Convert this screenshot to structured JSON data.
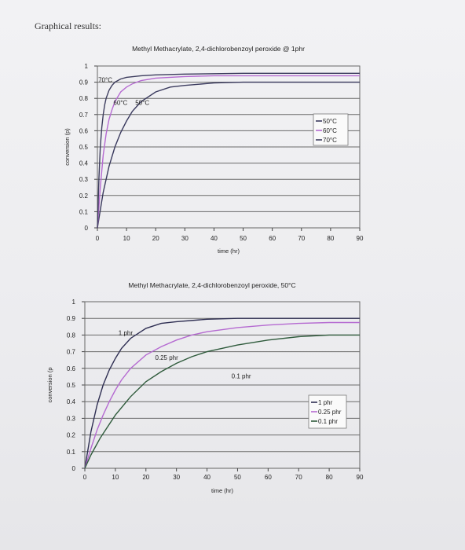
{
  "page": {
    "heading": "Graphical results:"
  },
  "chart_data": [
    {
      "type": "line",
      "title": "Methyl Methacrylate, 2,4-dichlorobenzoyl peroxide @ 1phr",
      "xlabel": "time (hr)",
      "ylabel": "conversion (p)",
      "xlim": [
        0,
        90
      ],
      "ylim": [
        0,
        1
      ],
      "xticks": [
        0,
        10,
        20,
        30,
        40,
        50,
        60,
        70,
        80,
        90
      ],
      "yticks": [
        0,
        0.1,
        0.2,
        0.3,
        0.4,
        0.5,
        0.6,
        0.7,
        0.8,
        0.9,
        1
      ],
      "grid": "horizontal",
      "legend": "right",
      "series": [
        {
          "name": "50°C",
          "color": "#3a3a5e",
          "x": [
            0,
            2,
            4,
            6,
            8,
            10,
            12,
            15,
            20,
            25,
            30,
            40,
            50,
            60,
            70,
            80,
            90
          ],
          "y": [
            0,
            0.22,
            0.38,
            0.5,
            0.59,
            0.66,
            0.72,
            0.78,
            0.84,
            0.87,
            0.88,
            0.895,
            0.9,
            0.9,
            0.9,
            0.9,
            0.9
          ]
        },
        {
          "name": "60°C",
          "color": "#b56ad1",
          "x": [
            0,
            1,
            2,
            3,
            4,
            5,
            6,
            8,
            10,
            12,
            15,
            20,
            25,
            30,
            40,
            50,
            60,
            70,
            80,
            90
          ],
          "y": [
            0,
            0.25,
            0.45,
            0.58,
            0.67,
            0.73,
            0.78,
            0.84,
            0.87,
            0.89,
            0.91,
            0.925,
            0.93,
            0.935,
            0.94,
            0.94,
            0.94,
            0.94,
            0.94,
            0.94
          ]
        },
        {
          "name": "70°C",
          "color": "#3d3d5e",
          "x": [
            0,
            0.5,
            1,
            1.5,
            2,
            2.5,
            3,
            4,
            5,
            6,
            8,
            10,
            15,
            20,
            30,
            50,
            70,
            90
          ],
          "y": [
            0,
            0.3,
            0.5,
            0.62,
            0.7,
            0.76,
            0.8,
            0.85,
            0.88,
            0.9,
            0.92,
            0.93,
            0.94,
            0.945,
            0.95,
            0.955,
            0.955,
            0.955
          ]
        }
      ],
      "annotations": [
        {
          "text": "70°C",
          "x": 0.3,
          "y": 0.9
        },
        {
          "text": "60°C",
          "x": 5.5,
          "y": 0.76
        },
        {
          "text": "50°C",
          "x": 13,
          "y": 0.76
        }
      ]
    },
    {
      "type": "line",
      "title": "Methyl Methacrylate, 2,4-dichlorobenzoyl peroxide, 50°C",
      "xlabel": "time (hr)",
      "ylabel": "conversion (p",
      "xlim": [
        0,
        90
      ],
      "ylim": [
        0,
        1
      ],
      "xticks": [
        0,
        10,
        20,
        30,
        40,
        50,
        60,
        70,
        80,
        90
      ],
      "yticks": [
        0,
        0.1,
        0.2,
        0.3,
        0.4,
        0.5,
        0.6,
        0.7,
        0.8,
        0.9,
        1
      ],
      "grid": "horizontal",
      "legend": "right",
      "series": [
        {
          "name": "1 phr",
          "color": "#2e2e52",
          "x": [
            0,
            2,
            4,
            6,
            8,
            10,
            12,
            15,
            20,
            25,
            30,
            40,
            50,
            60,
            70,
            80,
            90
          ],
          "y": [
            0,
            0.22,
            0.38,
            0.5,
            0.59,
            0.66,
            0.72,
            0.78,
            0.84,
            0.87,
            0.88,
            0.895,
            0.9,
            0.9,
            0.9,
            0.9,
            0.9
          ]
        },
        {
          "name": "0.25 phr",
          "color": "#b56ad1",
          "x": [
            0,
            2,
            4,
            6,
            8,
            10,
            12,
            15,
            20,
            25,
            30,
            35,
            40,
            50,
            60,
            70,
            80,
            90
          ],
          "y": [
            0,
            0.12,
            0.23,
            0.32,
            0.4,
            0.47,
            0.53,
            0.6,
            0.68,
            0.73,
            0.77,
            0.8,
            0.82,
            0.845,
            0.86,
            0.87,
            0.875,
            0.875
          ]
        },
        {
          "name": "0.1 phr",
          "color": "#2f5b3c",
          "x": [
            0,
            2,
            5,
            10,
            15,
            20,
            25,
            30,
            35,
            40,
            50,
            60,
            70,
            80,
            90
          ],
          "y": [
            0,
            0.08,
            0.18,
            0.32,
            0.43,
            0.52,
            0.58,
            0.63,
            0.67,
            0.7,
            0.74,
            0.77,
            0.79,
            0.8,
            0.8
          ]
        }
      ],
      "annotations": [
        {
          "text": "1 phr",
          "x": 11,
          "y": 0.8
        },
        {
          "text": "0.25 phr",
          "x": 23,
          "y": 0.65
        },
        {
          "text": "0.1 phr",
          "x": 48,
          "y": 0.54
        }
      ]
    }
  ]
}
